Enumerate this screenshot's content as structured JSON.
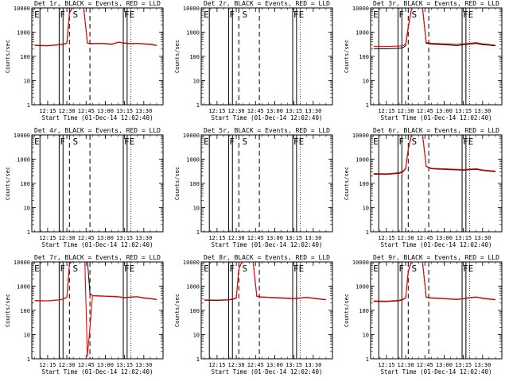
{
  "figure": {
    "ylabel": "Counts/sec",
    "xlabel": "Start Time (01-Dec-14 12:02:40)",
    "tick_labels_x": [
      "12:15",
      "12:30",
      "12:45",
      "13:00",
      "13:15",
      "13:30"
    ],
    "tick_labels_y": [
      "1",
      "10",
      "100",
      "1000",
      "10000"
    ],
    "colors": {
      "events": "#000000",
      "lld": "#ff0000",
      "background": "#ffffff"
    }
  },
  "chart_data": [
    {
      "type": "line",
      "title": "Det 1r, BLACK = Events, RED = LLD",
      "ylog": true,
      "ylim": [
        1,
        10000
      ],
      "xlim": [
        "12:02:40",
        "13:45"
      ],
      "has_data": true,
      "markers": [
        "E",
        "F",
        "S",
        "FE"
      ],
      "x": [
        "12:05",
        "12:15",
        "12:25",
        "12:28",
        "12:30",
        "12:32",
        "12:35",
        "12:40",
        "12:43",
        "12:46",
        "12:50",
        "12:55",
        "13:00",
        "13:05",
        "13:10",
        "13:15",
        "13:20",
        "13:25",
        "13:30",
        "13:35",
        "13:40"
      ],
      "series": [
        {
          "name": "Events",
          "values": [
            280,
            270,
            300,
            320,
            350,
            6000,
            12000,
            12000,
            12000,
            350,
            330,
            340,
            330,
            310,
            380,
            350,
            330,
            340,
            320,
            310,
            280
          ]
        },
        {
          "name": "LLD",
          "values": [
            290,
            280,
            310,
            330,
            360,
            6200,
            12500,
            12500,
            12500,
            360,
            340,
            350,
            340,
            320,
            390,
            360,
            340,
            350,
            330,
            320,
            290
          ]
        }
      ]
    },
    {
      "type": "line",
      "title": "Det 2r, BLACK = Events, RED = LLD",
      "ylog": true,
      "ylim": [
        1,
        10000
      ],
      "xlim": [
        "12:02:40",
        "13:45"
      ],
      "has_data": false,
      "markers": [
        "E",
        "F",
        "S",
        "FE"
      ],
      "x": [],
      "series": []
    },
    {
      "type": "line",
      "title": "Det 3r, BLACK = Events, RED = LLD",
      "ylog": true,
      "ylim": [
        1,
        10000
      ],
      "xlim": [
        "12:02:40",
        "13:45"
      ],
      "has_data": true,
      "markers": [
        "E",
        "F",
        "S",
        "FE"
      ],
      "x": [
        "12:05",
        "12:15",
        "12:25",
        "12:28",
        "12:30",
        "12:32",
        "12:35",
        "12:40",
        "12:43",
        "12:46",
        "12:50",
        "12:55",
        "13:00",
        "13:05",
        "13:10",
        "13:15",
        "13:20",
        "13:25",
        "13:30",
        "13:35",
        "13:40"
      ],
      "series": [
        {
          "name": "Events",
          "values": [
            210,
            205,
            215,
            230,
            280,
            1500,
            12000,
            12000,
            12000,
            350,
            320,
            310,
            300,
            290,
            280,
            300,
            320,
            340,
            300,
            290,
            270
          ]
        },
        {
          "name": "LLD",
          "values": [
            260,
            255,
            265,
            280,
            320,
            1700,
            12500,
            12500,
            12500,
            380,
            350,
            340,
            330,
            320,
            310,
            330,
            350,
            370,
            330,
            310,
            290
          ]
        }
      ]
    },
    {
      "type": "line",
      "title": "Det 4r, BLACK = Events, RED = LLD",
      "ylog": true,
      "ylim": [
        1,
        10000
      ],
      "xlim": [
        "12:02:40",
        "13:45"
      ],
      "has_data": false,
      "markers": [
        "E",
        "F",
        "S",
        "FE"
      ],
      "x": [],
      "series": []
    },
    {
      "type": "line",
      "title": "Det 5r, BLACK = Events, RED = LLD",
      "ylog": true,
      "ylim": [
        1,
        10000
      ],
      "xlim": [
        "12:02:40",
        "13:45"
      ],
      "has_data": false,
      "markers": [
        "E",
        "F",
        "S",
        "FE"
      ],
      "x": [],
      "series": []
    },
    {
      "type": "line",
      "title": "Det 6r, BLACK = Events, RED = LLD",
      "ylog": true,
      "ylim": [
        1,
        10000
      ],
      "xlim": [
        "12:02:40",
        "13:45"
      ],
      "has_data": true,
      "markers": [
        "E",
        "F",
        "S",
        "FE"
      ],
      "x": [
        "12:05",
        "12:15",
        "12:25",
        "12:28",
        "12:30",
        "12:32",
        "12:35",
        "12:40",
        "12:43",
        "12:46",
        "12:50",
        "12:55",
        "13:00",
        "13:05",
        "13:10",
        "13:15",
        "13:20",
        "13:25",
        "13:30",
        "13:35",
        "13:40"
      ],
      "series": [
        {
          "name": "Events",
          "values": [
            240,
            235,
            260,
            300,
            400,
            2500,
            12000,
            12000,
            12000,
            500,
            400,
            390,
            380,
            370,
            360,
            350,
            370,
            380,
            340,
            320,
            300
          ]
        },
        {
          "name": "LLD",
          "values": [
            255,
            250,
            275,
            320,
            420,
            2700,
            12500,
            12500,
            12500,
            520,
            420,
            410,
            400,
            390,
            380,
            370,
            390,
            400,
            360,
            340,
            320
          ]
        }
      ]
    },
    {
      "type": "line",
      "title": "Det 7r, BLACK = Events, RED = LLD",
      "ylog": true,
      "ylim": [
        1,
        10000
      ],
      "xlim": [
        "12:02:40",
        "13:45"
      ],
      "has_data": true,
      "markers": [
        "E",
        "F",
        "S",
        "FE"
      ],
      "x": [
        "12:05",
        "12:15",
        "12:25",
        "12:28",
        "12:30",
        "12:32",
        "12:35",
        "12:40",
        "12:44",
        "12:46",
        "12:48",
        "12:50",
        "12:55",
        "13:00",
        "13:05",
        "13:10",
        "13:15",
        "13:20",
        "13:25",
        "13:30",
        "13:35",
        "13:40"
      ],
      "series": [
        {
          "name": "Events",
          "values": [
            250,
            245,
            270,
            300,
            350,
            8000,
            12000,
            12000,
            12000,
            12000,
            500,
            400,
            390,
            380,
            370,
            360,
            330,
            350,
            360,
            320,
            300,
            280
          ]
        },
        {
          "name": "LLD",
          "values": [
            255,
            250,
            275,
            305,
            355,
            8200,
            12500,
            12500,
            12500,
            1.2,
            20,
            410,
            400,
            390,
            380,
            370,
            340,
            360,
            370,
            330,
            310,
            290
          ]
        }
      ]
    },
    {
      "type": "line",
      "title": "Det 8r, BLACK = Events, RED = LLD",
      "ylog": true,
      "ylim": [
        1,
        10000
      ],
      "xlim": [
        "12:02:40",
        "13:45"
      ],
      "has_data": true,
      "markers": [
        "E",
        "F",
        "S",
        "FE"
      ],
      "x": [
        "12:05",
        "12:15",
        "12:25",
        "12:28",
        "12:30",
        "12:32",
        "12:35",
        "12:40",
        "12:43",
        "12:46",
        "12:50",
        "12:55",
        "13:00",
        "13:05",
        "13:10",
        "13:15",
        "13:20",
        "13:25",
        "13:30",
        "13:35",
        "13:40"
      ],
      "series": [
        {
          "name": "Events",
          "values": [
            260,
            255,
            270,
            290,
            320,
            5000,
            12000,
            12000,
            12000,
            380,
            350,
            340,
            330,
            320,
            310,
            300,
            320,
            340,
            310,
            290,
            270
          ]
        },
        {
          "name": "LLD",
          "values": [
            270,
            265,
            280,
            300,
            330,
            5200,
            12500,
            12500,
            12500,
            390,
            360,
            350,
            340,
            330,
            320,
            310,
            330,
            350,
            320,
            300,
            280
          ]
        }
      ]
    },
    {
      "type": "line",
      "title": "Det 9r, BLACK = Events, RED = LLD",
      "ylog": true,
      "ylim": [
        1,
        10000
      ],
      "xlim": [
        "12:02:40",
        "13:45"
      ],
      "has_data": true,
      "markers": [
        "E",
        "F",
        "S",
        "FE"
      ],
      "x": [
        "12:05",
        "12:15",
        "12:25",
        "12:28",
        "12:30",
        "12:32",
        "12:35",
        "12:40",
        "12:43",
        "12:46",
        "12:50",
        "12:55",
        "13:00",
        "13:05",
        "13:10",
        "13:15",
        "13:20",
        "13:25",
        "13:30",
        "13:35",
        "13:40"
      ],
      "series": [
        {
          "name": "Events",
          "values": [
            235,
            230,
            250,
            280,
            320,
            4000,
            12000,
            12000,
            12000,
            350,
            320,
            310,
            300,
            290,
            280,
            300,
            330,
            350,
            310,
            290,
            270
          ]
        },
        {
          "name": "LLD",
          "values": [
            245,
            240,
            260,
            290,
            330,
            4200,
            12500,
            12500,
            12500,
            360,
            330,
            320,
            310,
            300,
            290,
            310,
            340,
            360,
            320,
            300,
            280
          ]
        }
      ]
    }
  ]
}
